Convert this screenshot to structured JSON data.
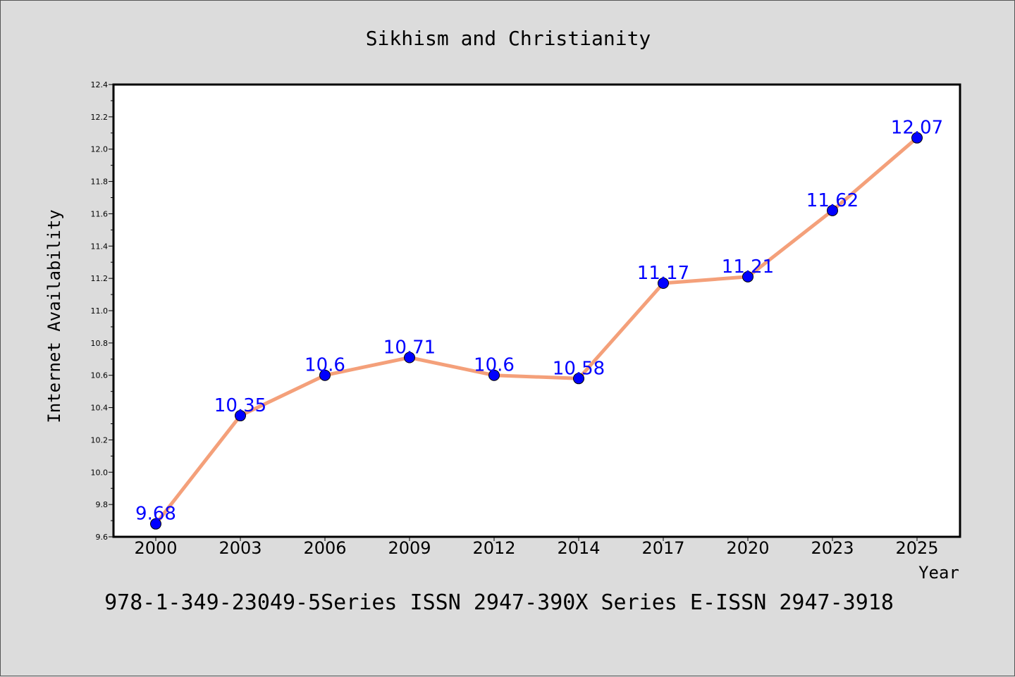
{
  "chart_data": {
    "type": "line",
    "title": "Sikhism and Christianity",
    "xlabel": "Year",
    "ylabel": "Internet Availability",
    "categories": [
      "2000",
      "2003",
      "2006",
      "2009",
      "2012",
      "2014",
      "2017",
      "2020",
      "2023",
      "2025"
    ],
    "series": [
      {
        "values": [
          9.68,
          10.35,
          10.6,
          10.71,
          10.6,
          10.58,
          11.17,
          11.21,
          11.62,
          12.07
        ],
        "data_labels": [
          "9.68",
          "10.35",
          "10.6",
          "10.71",
          "10.6",
          "10.58",
          "11.17",
          "11.21",
          "11.62",
          "12.07"
        ],
        "line_color": "#f4a07a",
        "marker_color": "#0000ff"
      }
    ],
    "ylim": [
      9.6,
      12.4
    ],
    "yticks": [
      "9.6",
      "9.8",
      "10.0",
      "10.2",
      "10.4",
      "10.6",
      "10.8",
      "11.0",
      "11.2",
      "11.4",
      "11.6",
      "11.8",
      "12.0",
      "12.2",
      "12.4"
    ],
    "grid": false,
    "legend": "none"
  },
  "footer": "978-1-349-23049-5Series ISSN 2947-390X Series E-ISSN 2947-3918",
  "colors": {
    "background": "#dcdcdc",
    "plot_background": "#ffffff",
    "line": "#f4a07a",
    "marker": "#0000ff",
    "data_label": "#0000ff"
  }
}
